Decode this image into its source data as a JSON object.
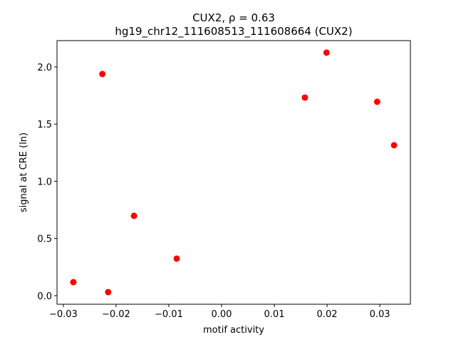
{
  "chart_data": {
    "type": "scatter",
    "title": "CUX2, ρ = 0.63",
    "subtitle": "hg19_chr12_111608513_111608664 (CUX2)",
    "x_label": "motif activity",
    "y_label": "signal at CRE (ln)",
    "color": "#ff0000",
    "x": [
      -0.0281,
      -0.0226,
      -0.0215,
      -0.0166,
      -0.0085,
      0.0158,
      0.0199,
      0.0295,
      0.0327
    ],
    "values": [
      0.118,
      1.938,
      0.031,
      0.698,
      0.324,
      1.732,
      2.125,
      1.695,
      1.315
    ],
    "xlim": [
      -0.0312,
      0.0358
    ],
    "ylim": [
      -0.075,
      2.23
    ],
    "xticks": [
      {
        "value": -0.03,
        "label": "−0.03"
      },
      {
        "value": -0.02,
        "label": "−0.02"
      },
      {
        "value": -0.01,
        "label": "−0.01"
      },
      {
        "value": 0,
        "label": "0.00"
      },
      {
        "value": 0.01,
        "label": "0.01"
      },
      {
        "value": 0.02,
        "label": "0.02"
      },
      {
        "value": 0.03,
        "label": "0.03"
      }
    ],
    "yticks": [
      {
        "value": 0,
        "label": "0.0"
      },
      0.5,
      {
        "value": 1,
        "label": "1.0"
      },
      1.5,
      {
        "value": 2,
        "label": "2.0"
      }
    ],
    "grid": false
  }
}
